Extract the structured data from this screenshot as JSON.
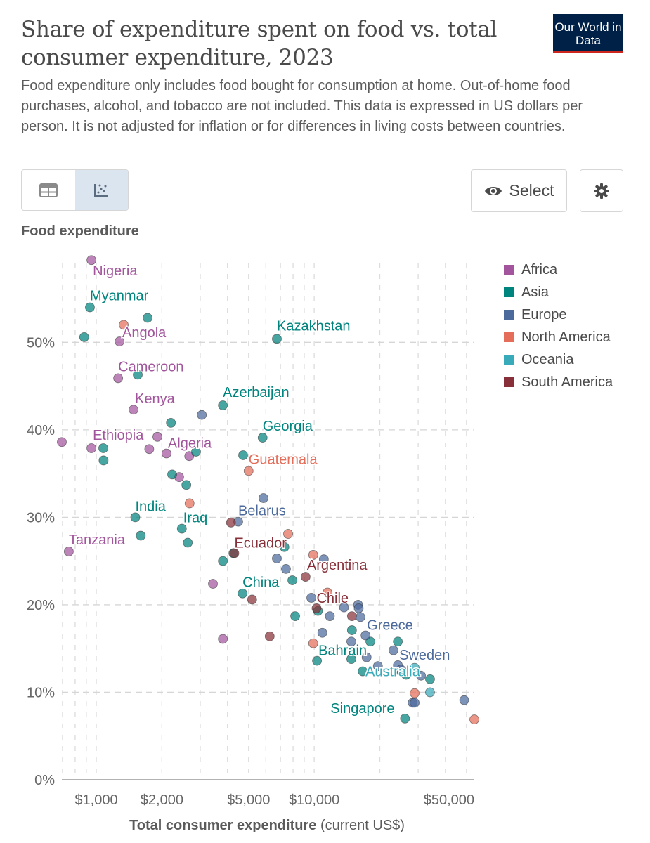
{
  "header": {
    "title": "Share of expenditure spent on food vs. total consumer expenditure, 2023",
    "logo": "Our World in Data",
    "subtitle": "Food expenditure only includes food bought for consumption at home. Out-of-home food purchases, alcohol, and tobacco are not included. This data is expressed in US dollars per person. It is not adjusted for inflation or for differences in living costs between countries."
  },
  "controls": {
    "tabs": [
      {
        "icon": "table-icon",
        "active": false
      },
      {
        "icon": "scatter-chart-icon",
        "active": true
      }
    ],
    "select_label": "Select",
    "select_icon": "eye-icon",
    "settings_icon": "gear-icon"
  },
  "chart_data": {
    "type": "scatter",
    "title": "Share of expenditure spent on food vs. total consumer expenditure, 2023",
    "ylabel": "Food expenditure",
    "xlabel_bold": "Total consumer expenditure",
    "xlabel_unit": "(current US$)",
    "xscale": "log",
    "xlim": [
      695,
      54300
    ],
    "ylim": [
      0,
      59.5
    ],
    "xticks": [
      {
        "v": 1000,
        "label": "$1,000"
      },
      {
        "v": 2000,
        "label": "$2,000"
      },
      {
        "v": 5000,
        "label": "$5,000"
      },
      {
        "v": 10000,
        "label": "$10,000"
      },
      {
        "v": 50000,
        "label": "$50,000"
      }
    ],
    "yticks": [
      {
        "v": 0,
        "label": "0%"
      },
      {
        "v": 10,
        "label": "10%"
      },
      {
        "v": 20,
        "label": "20%"
      },
      {
        "v": 30,
        "label": "30%"
      },
      {
        "v": 40,
        "label": "40%"
      },
      {
        "v": 50,
        "label": "50%"
      }
    ],
    "grid": true,
    "legend_position": "right",
    "series": [
      {
        "name": "Africa",
        "color": "#a2559c",
        "points": [
          {
            "x": 950,
            "y": 59.4,
            "label": "Nigeria"
          },
          {
            "x": 1278,
            "y": 50.1,
            "label": "Angola"
          },
          {
            "x": 1260,
            "y": 45.9,
            "label": "Cameroon"
          },
          {
            "x": 1482,
            "y": 42.3,
            "label": "Kenya"
          },
          {
            "x": 950,
            "y": 37.9,
            "label": "Ethiopia"
          },
          {
            "x": 695,
            "y": 38.6
          },
          {
            "x": 1907,
            "y": 39.2
          },
          {
            "x": 1750,
            "y": 37.8
          },
          {
            "x": 2100,
            "y": 37.3,
            "label": "Algeria"
          },
          {
            "x": 2670,
            "y": 37.0
          },
          {
            "x": 2400,
            "y": 34.6
          },
          {
            "x": 748,
            "y": 26.1,
            "label": "Tanzania"
          },
          {
            "x": 3430,
            "y": 22.4
          },
          {
            "x": 3810,
            "y": 16.1
          }
        ]
      },
      {
        "name": "Asia",
        "color": "#00847e",
        "points": [
          {
            "x": 935,
            "y": 54.0,
            "label": "Myanmar"
          },
          {
            "x": 1720,
            "y": 52.8
          },
          {
            "x": 880,
            "y": 50.6
          },
          {
            "x": 6740,
            "y": 50.4,
            "label": "Kazakhstan"
          },
          {
            "x": 1550,
            "y": 46.3
          },
          {
            "x": 3810,
            "y": 42.8,
            "label": "Azerbaijan"
          },
          {
            "x": 2200,
            "y": 40.8
          },
          {
            "x": 5800,
            "y": 39.1,
            "label": "Georgia"
          },
          {
            "x": 1077,
            "y": 37.9
          },
          {
            "x": 2870,
            "y": 37.5
          },
          {
            "x": 4720,
            "y": 37.1
          },
          {
            "x": 1080,
            "y": 36.5
          },
          {
            "x": 2230,
            "y": 34.9
          },
          {
            "x": 2590,
            "y": 33.7
          },
          {
            "x": 1510,
            "y": 30.0,
            "label": "India"
          },
          {
            "x": 2470,
            "y": 28.7,
            "label": "Iraq"
          },
          {
            "x": 1600,
            "y": 27.9
          },
          {
            "x": 2630,
            "y": 27.1
          },
          {
            "x": 7300,
            "y": 26.6
          },
          {
            "x": 4260,
            "y": 25.9
          },
          {
            "x": 3810,
            "y": 25.0
          },
          {
            "x": 7940,
            "y": 22.8
          },
          {
            "x": 4690,
            "y": 21.3,
            "label": "China"
          },
          {
            "x": 8180,
            "y": 18.7
          },
          {
            "x": 10400,
            "y": 19.3
          },
          {
            "x": 14900,
            "y": 17.1
          },
          {
            "x": 18100,
            "y": 15.8
          },
          {
            "x": 24200,
            "y": 15.8
          },
          {
            "x": 14800,
            "y": 13.8
          },
          {
            "x": 10300,
            "y": 13.6,
            "label": "Bahrain"
          },
          {
            "x": 16700,
            "y": 12.4
          },
          {
            "x": 25000,
            "y": 12.4
          },
          {
            "x": 26400,
            "y": 12.0
          },
          {
            "x": 34000,
            "y": 11.5
          },
          {
            "x": 26100,
            "y": 7.0,
            "label": "Singapore"
          }
        ]
      },
      {
        "name": "Europe",
        "color": "#4c6a9c",
        "points": [
          {
            "x": 3050,
            "y": 41.7
          },
          {
            "x": 5850,
            "y": 32.2
          },
          {
            "x": 4480,
            "y": 29.5,
            "label": "Belarus"
          },
          {
            "x": 6740,
            "y": 25.3
          },
          {
            "x": 7420,
            "y": 24.1
          },
          {
            "x": 11070,
            "y": 25.2
          },
          {
            "x": 9700,
            "y": 20.8
          },
          {
            "x": 13700,
            "y": 19.7
          },
          {
            "x": 15900,
            "y": 20.0
          },
          {
            "x": 16000,
            "y": 19.6
          },
          {
            "x": 11800,
            "y": 18.7
          },
          {
            "x": 16300,
            "y": 18.6
          },
          {
            "x": 10900,
            "y": 16.8
          },
          {
            "x": 17200,
            "y": 16.5,
            "label": "Greece"
          },
          {
            "x": 14800,
            "y": 15.8
          },
          {
            "x": 17400,
            "y": 14.0
          },
          {
            "x": 23100,
            "y": 14.8
          },
          {
            "x": 19600,
            "y": 13.0
          },
          {
            "x": 24200,
            "y": 13.1,
            "label": "Sweden"
          },
          {
            "x": 25000,
            "y": 12.6
          },
          {
            "x": 26800,
            "y": 12.3
          },
          {
            "x": 30900,
            "y": 11.9
          },
          {
            "x": 28300,
            "y": 8.8
          },
          {
            "x": 28900,
            "y": 8.8
          },
          {
            "x": 48800,
            "y": 9.1
          }
        ]
      },
      {
        "name": "North America",
        "color": "#e56e5a",
        "points": [
          {
            "x": 1336,
            "y": 52.0
          },
          {
            "x": 5000,
            "y": 35.3,
            "label": "Guatemala"
          },
          {
            "x": 2680,
            "y": 31.6
          },
          {
            "x": 7590,
            "y": 28.1
          },
          {
            "x": 9900,
            "y": 25.7
          },
          {
            "x": 11500,
            "y": 21.4
          },
          {
            "x": 9900,
            "y": 15.6
          },
          {
            "x": 28900,
            "y": 9.9
          },
          {
            "x": 54300,
            "y": 6.9
          }
        ]
      },
      {
        "name": "Oceania",
        "color": "#38aaba",
        "points": [
          {
            "x": 28900,
            "y": 12.8,
            "label": "Australia"
          },
          {
            "x": 34000,
            "y": 10.0
          }
        ]
      },
      {
        "name": "South America",
        "color": "#883039",
        "points": [
          {
            "x": 4150,
            "y": 29.4
          },
          {
            "x": 4300,
            "y": 25.9,
            "label": "Ecuador"
          },
          {
            "x": 5190,
            "y": 20.6
          },
          {
            "x": 6250,
            "y": 16.4
          },
          {
            "x": 9130,
            "y": 23.2,
            "label": "Argentina"
          },
          {
            "x": 10250,
            "y": 19.6,
            "label": "Chile"
          },
          {
            "x": 14900,
            "y": 18.7
          }
        ]
      }
    ]
  }
}
